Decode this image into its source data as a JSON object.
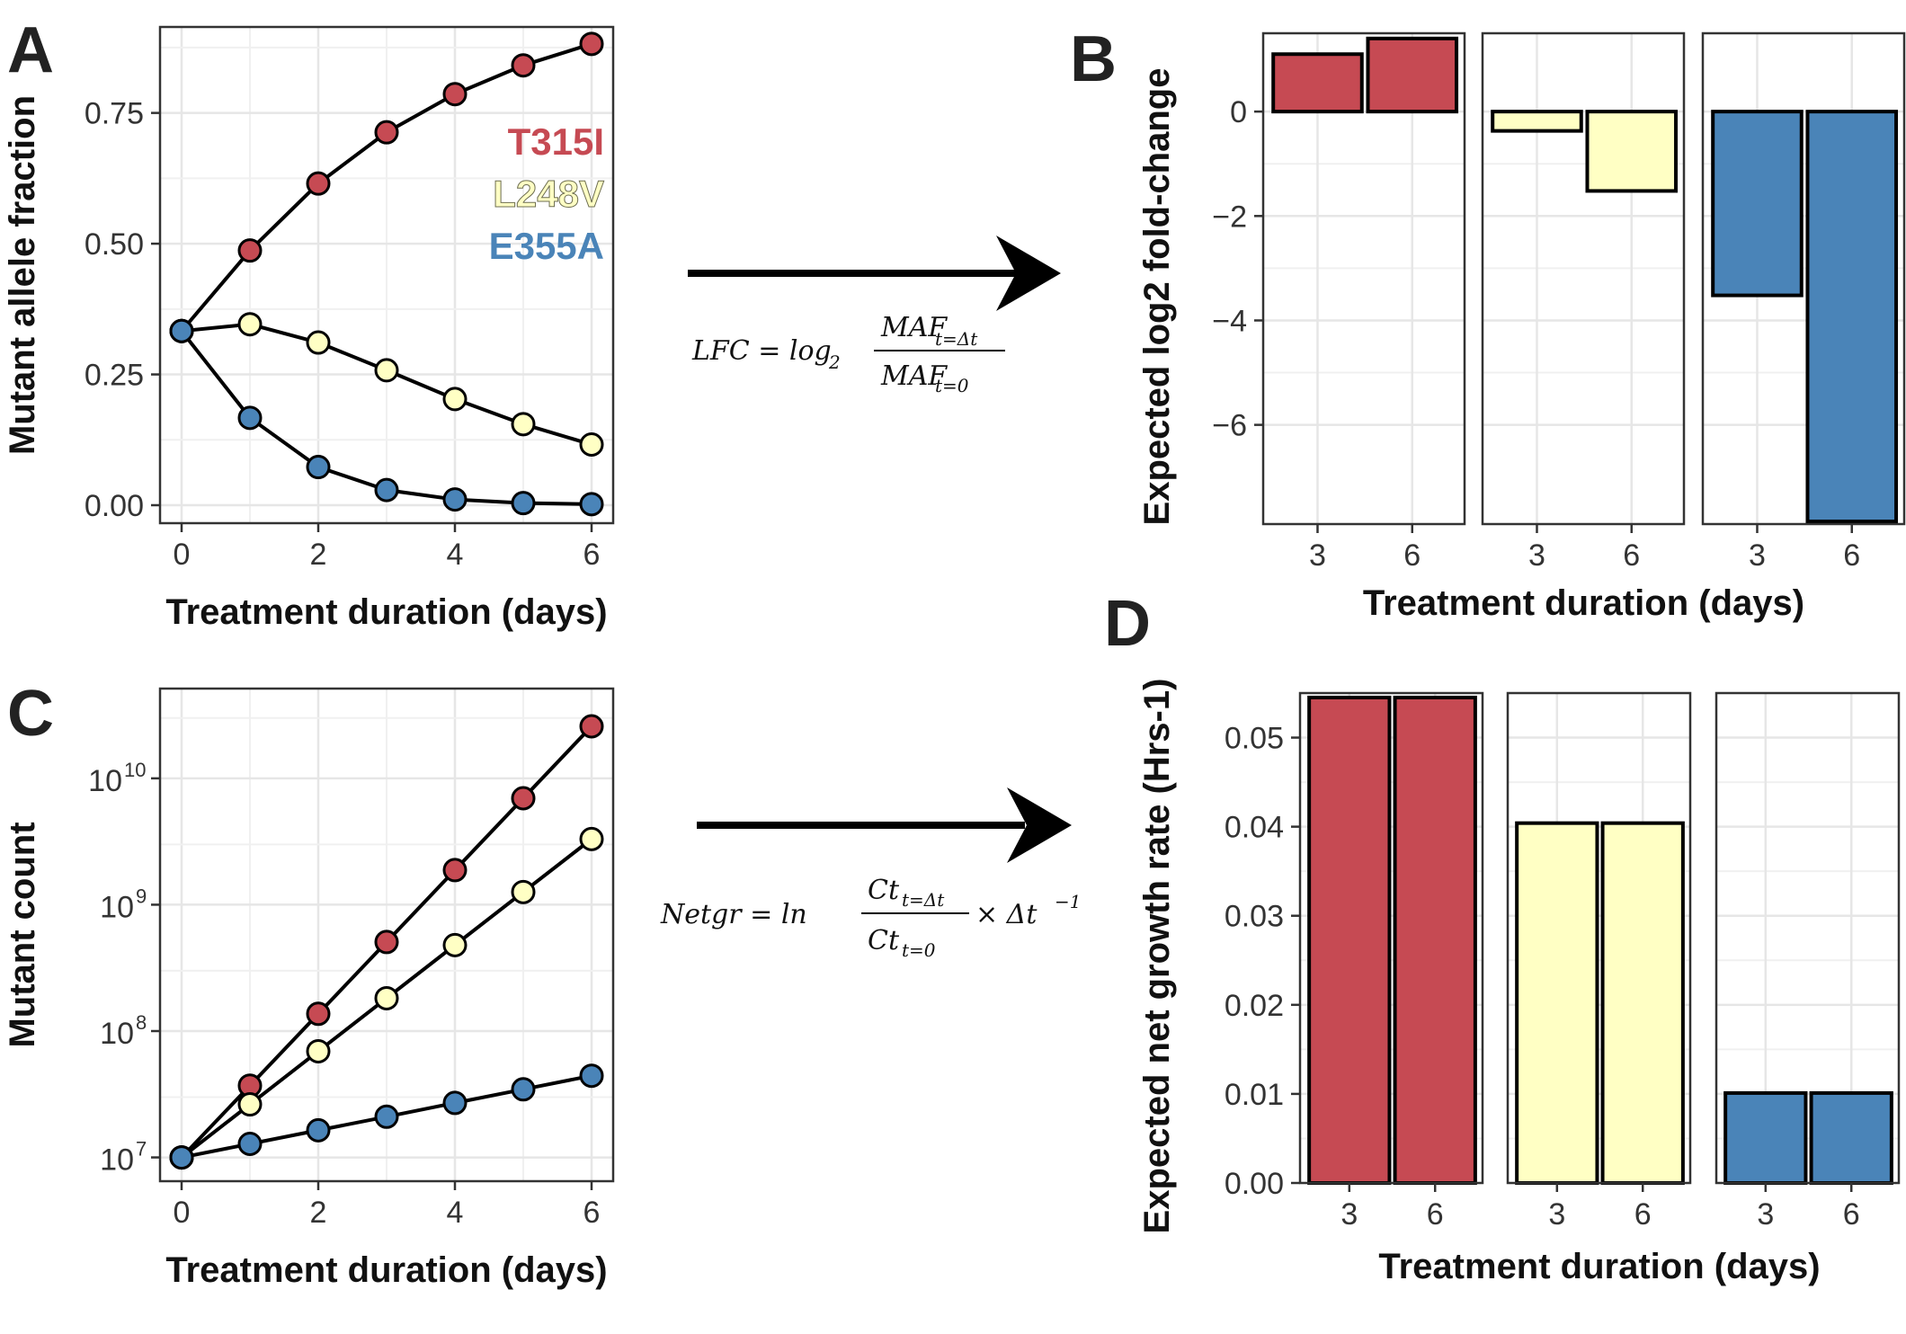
{
  "panels": {
    "A": "A",
    "B": "B",
    "C": "C",
    "D": "D"
  },
  "colors": {
    "T315I": "#c64a53",
    "L248V": "#ffffc4",
    "E355A": "#4a84b8",
    "grid": "#e6e6e6",
    "frame": "#333333"
  },
  "arrows": {
    "lfc_formula": {
      "lhs": "LFC = log",
      "base": "2",
      "num": "MAF",
      "num_sub": "t=Δt",
      "den": "MAF",
      "den_sub": "t=0"
    },
    "netgr_formula": {
      "lhs": "Netgr = ln",
      "num": "Ct",
      "num_sub": "t=Δt",
      "den": "Ct",
      "den_sub": "t=0",
      "rhs": "× Δt",
      "rhs_sup": "−1"
    }
  },
  "chart_data": [
    {
      "id": "A",
      "type": "line",
      "xlabel": "Treatment duration (days)",
      "ylabel": "Mutant allele fraction",
      "xlim": [
        0,
        6
      ],
      "ylim": [
        0,
        0.88
      ],
      "x_ticks": [
        "0",
        "2",
        "4",
        "6"
      ],
      "y_ticks": [
        "0.00",
        "0.25",
        "0.50",
        "0.75"
      ],
      "x": [
        0,
        1,
        2,
        3,
        4,
        5,
        6
      ],
      "series": [
        {
          "name": "T315I",
          "color": "#c64a53",
          "values": [
            0.333,
            0.487,
            0.615,
            0.713,
            0.786,
            0.841,
            0.882
          ]
        },
        {
          "name": "L248V",
          "color": "#ffffc4",
          "values": [
            0.333,
            0.346,
            0.311,
            0.258,
            0.203,
            0.155,
            0.116
          ]
        },
        {
          "name": "E355A",
          "color": "#4a84b8",
          "values": [
            0.333,
            0.167,
            0.073,
            0.029,
            0.011,
            0.004,
            0.002
          ]
        }
      ],
      "legend": "top-right inside"
    },
    {
      "id": "B",
      "type": "bar",
      "xlabel": "Treatment duration (days)",
      "ylabel": "Expected log2 fold-change",
      "ylim": [
        -7.9,
        1.5
      ],
      "y_ticks": [
        "0",
        "−2",
        "−4",
        "−6"
      ],
      "facets": [
        {
          "series": "T315I",
          "color": "#c64a53",
          "categories": [
            "3",
            "6"
          ],
          "values": [
            1.1,
            1.4
          ]
        },
        {
          "series": "L248V",
          "color": "#ffffc4",
          "categories": [
            "3",
            "6"
          ],
          "values": [
            -0.37,
            -1.52
          ]
        },
        {
          "series": "E355A",
          "color": "#4a84b8",
          "categories": [
            "3",
            "6"
          ],
          "values": [
            -3.52,
            -7.85
          ]
        }
      ]
    },
    {
      "id": "C",
      "type": "line",
      "scale": "log",
      "xlabel": "Treatment duration (days)",
      "ylabel": "Mutant count",
      "xlim": [
        0,
        6
      ],
      "ylim": [
        9000000,
        37000000000
      ],
      "x_ticks": [
        "0",
        "2",
        "4",
        "6"
      ],
      "y_ticks": [
        {
          "base": "10",
          "exp": "7",
          "value": 10000000
        },
        {
          "base": "10",
          "exp": "8",
          "value": 100000000
        },
        {
          "base": "10",
          "exp": "9",
          "value": 1000000000
        },
        {
          "base": "10",
          "exp": "10",
          "value": 10000000000
        }
      ],
      "x": [
        0,
        1,
        2,
        3,
        4,
        5,
        6
      ],
      "series": [
        {
          "name": "T315I",
          "color": "#c64a53",
          "values": [
            10000000,
            37000000,
            137000000,
            507000000,
            1880000000,
            6960000000,
            25800000000
          ]
        },
        {
          "name": "L248V",
          "color": "#ffffc4",
          "values": [
            10000000,
            26300000,
            69200000,
            182000000,
            479000000,
            1260000000,
            3310000000
          ]
        },
        {
          "name": "E355A",
          "color": "#4a84b8",
          "values": [
            10000000,
            12800000,
            16400000,
            21000000,
            27000000,
            34600000,
            44300000
          ]
        }
      ]
    },
    {
      "id": "D",
      "type": "bar",
      "xlabel": "Treatment duration (days)",
      "ylabel": "Expected net growth rate (Hrs-1)",
      "ylim": [
        0,
        0.055
      ],
      "y_ticks": [
        "0.00",
        "0.01",
        "0.02",
        "0.03",
        "0.04",
        "0.05"
      ],
      "facets": [
        {
          "series": "T315I",
          "color": "#c64a53",
          "categories": [
            "3",
            "6"
          ],
          "values": [
            0.0545,
            0.0545
          ]
        },
        {
          "series": "L248V",
          "color": "#ffffc4",
          "categories": [
            "3",
            "6"
          ],
          "values": [
            0.0404,
            0.0404
          ]
        },
        {
          "series": "E355A",
          "color": "#4a84b8",
          "categories": [
            "3",
            "6"
          ],
          "values": [
            0.0101,
            0.0101
          ]
        }
      ]
    }
  ]
}
